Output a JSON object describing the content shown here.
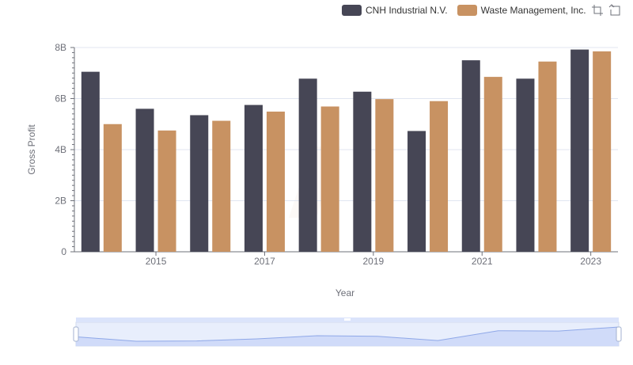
{
  "legend": {
    "items": [
      {
        "label": "CNH Industrial N.V.",
        "color": "#464655"
      },
      {
        "label": "Waste Management, Inc.",
        "color": "#c89262"
      }
    ]
  },
  "toolbox": {
    "icons": [
      "zoom-icon",
      "restore-icon"
    ]
  },
  "chart_data": {
    "type": "bar",
    "xlabel": "Year",
    "ylabel": "Gross Profit",
    "x": [
      2014,
      2015,
      2016,
      2017,
      2018,
      2019,
      2020,
      2021,
      2022,
      2023
    ],
    "x_tick_labels": [
      "2015",
      "2017",
      "2019",
      "2021",
      "2023"
    ],
    "y_tick_labels": [
      "0",
      "2B",
      "4B",
      "6B",
      "8B"
    ],
    "ylim": [
      0,
      8000000000
    ],
    "grid": true,
    "legend_position": "top-right",
    "series": [
      {
        "name": "CNH Industrial N.V.",
        "color": "#464655",
        "values": [
          7050000000,
          5600000000,
          5350000000,
          5750000000,
          6780000000,
          6270000000,
          4730000000,
          7500000000,
          6780000000,
          7920000000
        ]
      },
      {
        "name": "Waste Management, Inc.",
        "color": "#c89262",
        "values": [
          5000000000,
          4750000000,
          5130000000,
          5490000000,
          5690000000,
          5980000000,
          5900000000,
          6850000000,
          7450000000,
          7850000000
        ]
      }
    ],
    "data_zoom": {
      "start": 0,
      "end": 100
    }
  }
}
